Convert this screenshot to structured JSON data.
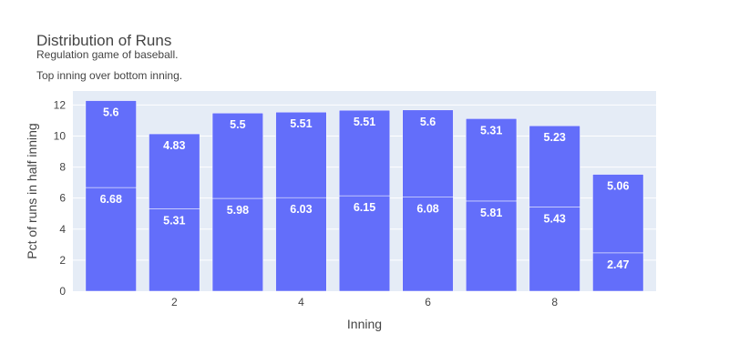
{
  "chart_data": {
    "type": "bar",
    "barmode": "stack",
    "title": "Distribution of Runs",
    "subtitle_lines": [
      "Regulation game of baseball.",
      "Top inning over bottom inning."
    ],
    "xlabel": "Inning",
    "ylabel": "Pct of runs in half inning",
    "x": [
      1,
      2,
      3,
      4,
      5,
      6,
      7,
      8,
      9
    ],
    "x_ticks": [
      2,
      4,
      6,
      8
    ],
    "y_ticks": [
      0,
      2,
      4,
      6,
      8,
      10,
      12
    ],
    "ylim": [
      0,
      12.9
    ],
    "xlim": [
      0.4,
      9.6
    ],
    "grid": true,
    "series": [
      {
        "values": [
          6.68,
          5.31,
          5.98,
          6.03,
          6.15,
          6.08,
          5.81,
          5.43,
          2.47
        ]
      },
      {
        "values": [
          5.6,
          4.83,
          5.5,
          5.51,
          5.51,
          5.6,
          5.31,
          5.23,
          5.06
        ]
      }
    ],
    "colors": {
      "bar": "#636efa",
      "plot_bg": "#e5ecf6",
      "grid": "#ffffff",
      "text": "#444444"
    }
  }
}
